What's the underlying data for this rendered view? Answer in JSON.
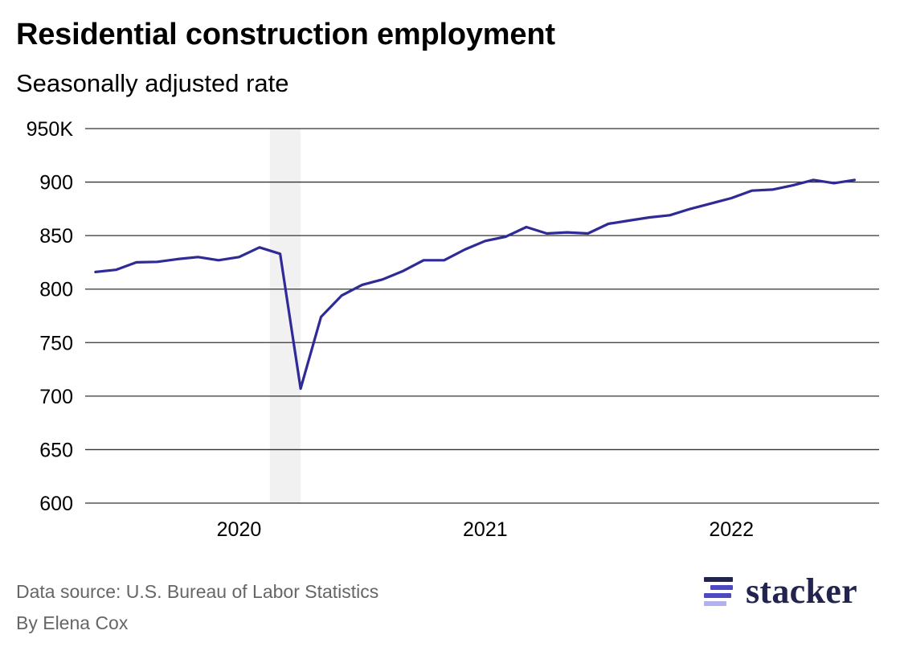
{
  "header": {
    "title": "Residential construction employment",
    "subtitle": "Seasonally adjusted rate"
  },
  "footer": {
    "source": "Data source: U.S. Bureau of Labor Statistics",
    "byline": "By Elena Cox"
  },
  "logo": {
    "text": "stacker"
  },
  "colors": {
    "line": "#2e2a96",
    "grid": "#333333",
    "shade": "#f1f1f1",
    "logo_dark": "#23234f",
    "logo_mid": "#4d49c2",
    "logo_light": "#b3b0ee"
  },
  "chart_data": {
    "type": "line",
    "title": "Residential construction employment",
    "subtitle": "Seasonally adjusted rate",
    "xlabel": "",
    "ylabel": "",
    "ylim": [
      600,
      950
    ],
    "y_ticks": [
      600,
      650,
      700,
      750,
      800,
      850,
      900,
      950
    ],
    "y_tick_labels": [
      "600",
      "650",
      "700",
      "750",
      "800",
      "850",
      "900",
      "950K"
    ],
    "x_ticks": [
      2020,
      2021,
      2022
    ],
    "x_tick_labels": [
      "2020",
      "2021",
      "2022"
    ],
    "xlim": [
      2019.375,
      2022.6
    ],
    "shaded_region": {
      "from": 2020.125,
      "to": 2020.25,
      "label": ""
    },
    "grid": true,
    "series": [
      {
        "name": "Residential construction employment",
        "x": [
          2019.417,
          2019.5,
          2019.583,
          2019.667,
          2019.75,
          2019.833,
          2019.917,
          2020.0,
          2020.083,
          2020.167,
          2020.25,
          2020.333,
          2020.417,
          2020.5,
          2020.583,
          2020.667,
          2020.75,
          2020.833,
          2020.917,
          2021.0,
          2021.083,
          2021.167,
          2021.25,
          2021.333,
          2021.417,
          2021.5,
          2021.583,
          2021.667,
          2021.75,
          2021.833,
          2021.917,
          2022.0,
          2022.083,
          2022.167,
          2022.25,
          2022.333,
          2022.417,
          2022.5
        ],
        "values": [
          816,
          818,
          825,
          825.5,
          828,
          830,
          827,
          830,
          839,
          833,
          707,
          774,
          794,
          804,
          809,
          817,
          827,
          827,
          837,
          845,
          849,
          858,
          852,
          853,
          852,
          861,
          864,
          867,
          869,
          875,
          880,
          885,
          892,
          893,
          897,
          902,
          899,
          902
        ]
      }
    ]
  }
}
